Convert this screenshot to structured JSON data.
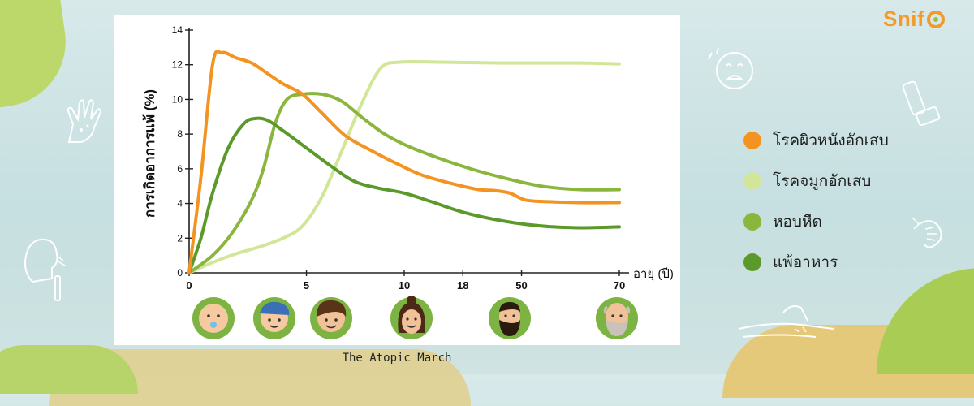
{
  "brand": {
    "logo_text": "Snif"
  },
  "caption": "The Atopic March",
  "legend": [
    {
      "label": "โรคผิวหนังอักเสบ",
      "color": "#f39321"
    },
    {
      "label": "โรคจมูกอักเสบ",
      "color": "#d2e69a"
    },
    {
      "label": "หอบหืด",
      "color": "#8bb63e"
    },
    {
      "label": "แพ้อาหาร",
      "color": "#5b9a2a"
    }
  ],
  "icons": [
    "baby-face-icon",
    "child-face-icon",
    "teen-face-icon",
    "woman-face-icon",
    "bearded-man-face-icon",
    "elderly-man-face-icon",
    "crying-face-icon",
    "inhaler-icon",
    "hand-rash-icon",
    "shrimp-icon",
    "arm-scratch-icon",
    "sneezing-person-icon"
  ],
  "chart_data": {
    "type": "line",
    "ylabel": "การเกิดอาการแพ้ (%)",
    "xlabel": "อายุ (ปี)",
    "ylim": [
      0,
      14
    ],
    "yticks": [
      "0",
      "2",
      "4",
      "6",
      "8",
      "10",
      "12",
      "14"
    ],
    "xticks": [
      "0",
      "5",
      "10",
      "18",
      "50",
      "70"
    ],
    "xtick_index": [
      0,
      1.5,
      2.75,
      3.5,
      4.25,
      5.5
    ],
    "series": [
      {
        "name": "โรคผิวหนังอักเสบ",
        "color": "#f39321",
        "points": [
          [
            0,
            0
          ],
          [
            0.15,
            5.5
          ],
          [
            0.3,
            12.0
          ],
          [
            0.42,
            12.7
          ],
          [
            0.6,
            12.4
          ],
          [
            0.8,
            12.1
          ],
          [
            1.0,
            11.5
          ],
          [
            1.2,
            10.9
          ],
          [
            1.45,
            10.3
          ],
          [
            1.7,
            9.2
          ],
          [
            2.0,
            7.9
          ],
          [
            2.35,
            7.0
          ],
          [
            2.7,
            6.2
          ],
          [
            3.0,
            5.6
          ],
          [
            3.4,
            5.1
          ],
          [
            3.7,
            4.8
          ],
          [
            3.9,
            4.75
          ],
          [
            4.1,
            4.6
          ],
          [
            4.3,
            4.2
          ],
          [
            4.6,
            4.1
          ],
          [
            5.0,
            4.05
          ],
          [
            5.5,
            4.05
          ]
        ]
      },
      {
        "name": "โรคจมูกอักเสบ",
        "color": "#d2e69a",
        "points": [
          [
            0,
            0
          ],
          [
            0.3,
            0.6
          ],
          [
            0.6,
            1.1
          ],
          [
            0.9,
            1.5
          ],
          [
            1.2,
            2.0
          ],
          [
            1.45,
            2.7
          ],
          [
            1.7,
            4.4
          ],
          [
            1.95,
            7.0
          ],
          [
            2.2,
            9.7
          ],
          [
            2.45,
            11.8
          ],
          [
            2.7,
            12.15
          ],
          [
            3.2,
            12.15
          ],
          [
            4.0,
            12.1
          ],
          [
            5.0,
            12.1
          ],
          [
            5.5,
            12.05
          ]
        ]
      },
      {
        "name": "หอบหืด",
        "color": "#8bb63e",
        "points": [
          [
            0,
            0
          ],
          [
            0.3,
            1.0
          ],
          [
            0.55,
            2.3
          ],
          [
            0.8,
            4.2
          ],
          [
            0.95,
            6.0
          ],
          [
            1.1,
            8.6
          ],
          [
            1.25,
            10.0
          ],
          [
            1.45,
            10.3
          ],
          [
            1.7,
            10.3
          ],
          [
            1.95,
            9.9
          ],
          [
            2.2,
            9.0
          ],
          [
            2.5,
            8.0
          ],
          [
            2.8,
            7.3
          ],
          [
            3.2,
            6.6
          ],
          [
            3.6,
            6.0
          ],
          [
            4.0,
            5.5
          ],
          [
            4.5,
            5.0
          ],
          [
            5.0,
            4.8
          ],
          [
            5.5,
            4.8
          ]
        ]
      },
      {
        "name": "แพ้อาหาร",
        "color": "#5b9a2a",
        "points": [
          [
            0,
            0
          ],
          [
            0.15,
            2.0
          ],
          [
            0.3,
            4.6
          ],
          [
            0.5,
            7.2
          ],
          [
            0.7,
            8.6
          ],
          [
            0.85,
            8.9
          ],
          [
            1.0,
            8.8
          ],
          [
            1.2,
            8.2
          ],
          [
            1.5,
            7.2
          ],
          [
            1.8,
            6.2
          ],
          [
            2.1,
            5.3
          ],
          [
            2.4,
            4.9
          ],
          [
            2.75,
            4.6
          ],
          [
            3.1,
            4.1
          ],
          [
            3.5,
            3.5
          ],
          [
            4.0,
            3.0
          ],
          [
            4.5,
            2.7
          ],
          [
            5.0,
            2.6
          ],
          [
            5.5,
            2.65
          ]
        ]
      }
    ]
  }
}
